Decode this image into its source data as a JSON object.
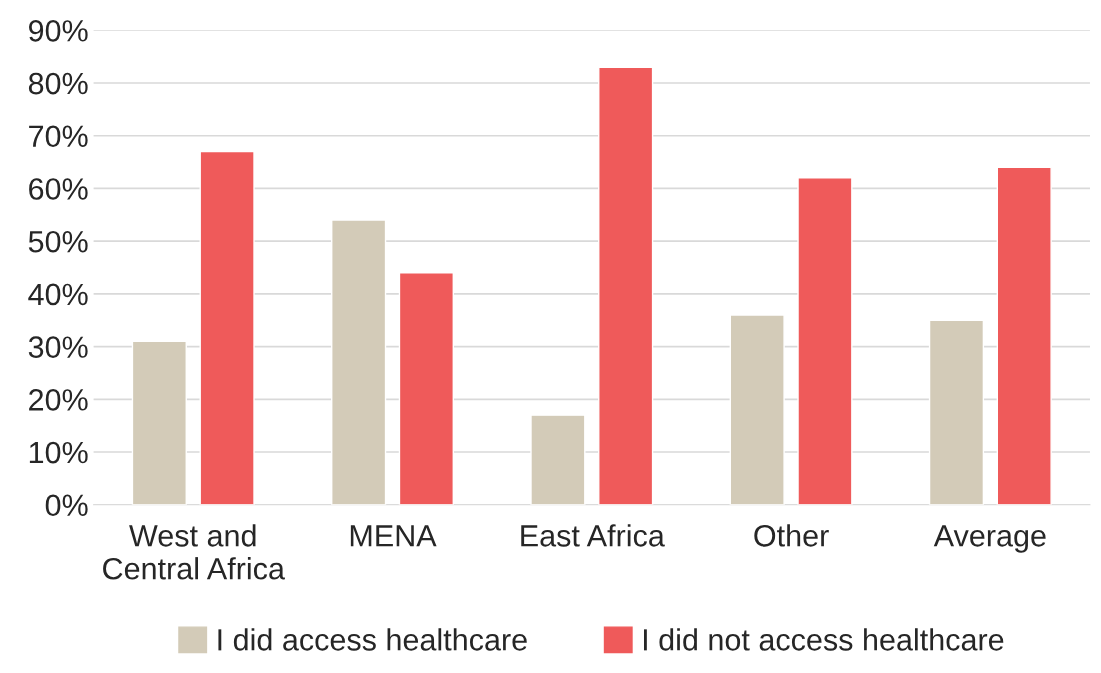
{
  "chart_data": {
    "type": "bar",
    "categories": [
      "West and\nCentral Africa",
      "MENA",
      "East Africa",
      "Other",
      "Average"
    ],
    "series": [
      {
        "name": "I did access healthcare",
        "color": "#d3cbb8",
        "values": [
          31,
          54,
          17,
          36,
          35
        ]
      },
      {
        "name": "I did not access healthcare",
        "color": "#ef5a5a",
        "values": [
          67,
          44,
          83,
          62,
          64
        ]
      }
    ],
    "ylim": [
      0,
      90
    ],
    "yticks": [
      {
        "value": 0,
        "label": "0%"
      },
      {
        "value": 10,
        "label": "10%"
      },
      {
        "value": 20,
        "label": "20%"
      },
      {
        "value": 30,
        "label": "30%"
      },
      {
        "value": 40,
        "label": "40%"
      },
      {
        "value": 50,
        "label": "50%"
      },
      {
        "value": 60,
        "label": "60%"
      },
      {
        "value": 70,
        "label": "70%"
      },
      {
        "value": 80,
        "label": "80%"
      },
      {
        "value": 90,
        "label": "90%"
      }
    ],
    "grid": "y",
    "legend": "bottom"
  }
}
